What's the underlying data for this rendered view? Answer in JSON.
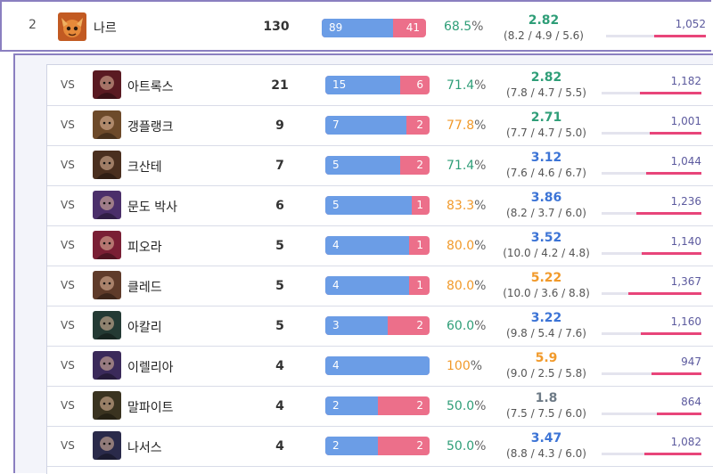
{
  "main": {
    "rank": "2",
    "name": "나르",
    "games": "130",
    "wins": "89",
    "losses": "41",
    "win_fraction": 0.685,
    "winrate": "68.5",
    "winrate_color": "green",
    "kda_ratio": "2.82",
    "kda_color": "#2f9e78",
    "kda_detail": "(8.2 / 4.9 / 5.6)",
    "gold": "1,052",
    "gold_fraction": 0.52,
    "icon": "gnar-portrait"
  },
  "vs_label": "VS",
  "pct_sign": "%",
  "matchups": [
    {
      "name": "아트록스",
      "games": "21",
      "wins": "15",
      "losses": "6",
      "win_fraction": 0.714,
      "winrate": "71.4",
      "winrate_color": "green",
      "kda_ratio": "2.82",
      "kda_color": "#2f9e78",
      "kda_detail": "(7.8 / 4.7 / 5.5)",
      "gold": "1,182",
      "gold_fraction": 0.62,
      "icon": "aatrox-portrait",
      "bg": "#5a1a22"
    },
    {
      "name": "갱플랭크",
      "games": "9",
      "wins": "7",
      "losses": "2",
      "win_fraction": 0.778,
      "winrate": "77.8",
      "winrate_color": "orange",
      "kda_ratio": "2.71",
      "kda_color": "#2f9e78",
      "kda_detail": "(7.7 / 4.7 / 5.0)",
      "gold": "1,001",
      "gold_fraction": 0.52,
      "icon": "gangplank-portrait",
      "bg": "#6d4a2a"
    },
    {
      "name": "크산테",
      "games": "7",
      "wins": "5",
      "losses": "2",
      "win_fraction": 0.714,
      "winrate": "71.4",
      "winrate_color": "green",
      "kda_ratio": "3.12",
      "kda_color": "#3c74d6",
      "kda_detail": "(7.6 / 4.6 / 6.7)",
      "gold": "1,044",
      "gold_fraction": 0.55,
      "icon": "ksante-portrait",
      "bg": "#4a2f1f"
    },
    {
      "name": "문도 박사",
      "games": "6",
      "wins": "5",
      "losses": "1",
      "win_fraction": 0.833,
      "winrate": "83.3",
      "winrate_color": "orange",
      "kda_ratio": "3.86",
      "kda_color": "#3c74d6",
      "kda_detail": "(8.2 / 3.7 / 6.0)",
      "gold": "1,236",
      "gold_fraction": 0.65,
      "icon": "mundo-portrait",
      "bg": "#4b2f6a"
    },
    {
      "name": "피오라",
      "games": "5",
      "wins": "4",
      "losses": "1",
      "win_fraction": 0.8,
      "winrate": "80.0",
      "winrate_color": "orange",
      "kda_ratio": "3.52",
      "kda_color": "#3c74d6",
      "kda_detail": "(10.0 / 4.2 / 4.8)",
      "gold": "1,140",
      "gold_fraction": 0.6,
      "icon": "fiora-portrait",
      "bg": "#7a1f35"
    },
    {
      "name": "클레드",
      "games": "5",
      "wins": "4",
      "losses": "1",
      "win_fraction": 0.8,
      "winrate": "80.0",
      "winrate_color": "orange",
      "kda_ratio": "5.22",
      "kda_color": "#f19a2b",
      "kda_detail": "(10.0 / 3.6 / 8.8)",
      "gold": "1,367",
      "gold_fraction": 0.73,
      "icon": "kled-portrait",
      "bg": "#5f3b2a"
    },
    {
      "name": "아칼리",
      "games": "5",
      "wins": "3",
      "losses": "2",
      "win_fraction": 0.6,
      "winrate": "60.0",
      "winrate_color": "green",
      "kda_ratio": "3.22",
      "kda_color": "#3c74d6",
      "kda_detail": "(9.8 / 5.4 / 7.6)",
      "gold": "1,160",
      "gold_fraction": 0.61,
      "icon": "akali-portrait",
      "bg": "#243a34"
    },
    {
      "name": "이렐리아",
      "games": "4",
      "wins": "4",
      "losses": "",
      "win_fraction": 1.0,
      "winrate": "100",
      "winrate_color": "orange",
      "kda_ratio": "5.9",
      "kda_color": "#f19a2b",
      "kda_detail": "(9.0 / 2.5 / 5.8)",
      "gold": "947",
      "gold_fraction": 0.5,
      "icon": "irelia-portrait",
      "bg": "#3b2a5a"
    },
    {
      "name": "말파이트",
      "games": "4",
      "wins": "2",
      "losses": "2",
      "win_fraction": 0.5,
      "winrate": "50.0",
      "winrate_color": "green",
      "kda_ratio": "1.8",
      "kda_color": "#6d7a86",
      "kda_detail": "(7.5 / 7.5 / 6.0)",
      "gold": "864",
      "gold_fraction": 0.45,
      "icon": "malphite-portrait",
      "bg": "#3a3320"
    },
    {
      "name": "나서스",
      "games": "4",
      "wins": "2",
      "losses": "2",
      "win_fraction": 0.5,
      "winrate": "50.0",
      "winrate_color": "green",
      "kda_ratio": "3.47",
      "kda_color": "#3c74d6",
      "kda_detail": "(8.8 / 4.3 / 6.0)",
      "gold": "1,082",
      "gold_fraction": 0.57,
      "icon": "nasus-portrait",
      "bg": "#2a2a4a"
    }
  ]
}
